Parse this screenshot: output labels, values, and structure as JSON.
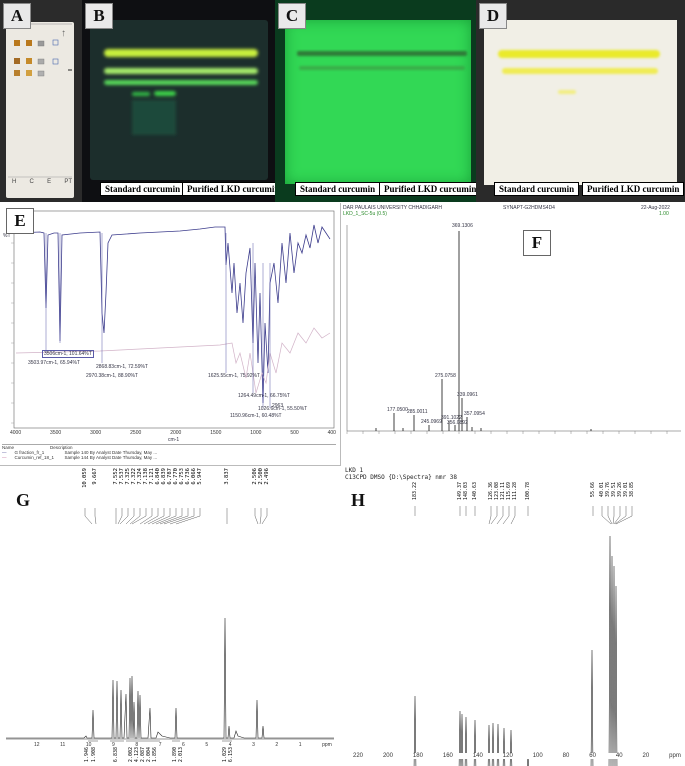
{
  "panels": {
    "a": {
      "letter": "A",
      "lane_labels": [
        "H",
        "C",
        "E",
        "PT"
      ]
    },
    "b": {
      "letter": "B",
      "label_std": "Standard curcumin",
      "label_lkd": "Purified LKD curcumin"
    },
    "c": {
      "letter": "C",
      "label_std": "Standard curcumin",
      "label_lkd": "Purified LKD curcumin"
    },
    "d": {
      "letter": "D",
      "label_std": "Standard curcumin",
      "label_lkd": "Purified LKD curcumin"
    },
    "e": {
      "letter": "E",
      "xlabel": "cm-1",
      "ylabel": "%T",
      "legend_header_name": "Name",
      "legend_header_desc": "Description",
      "x_ticks": [
        "4000",
        "3500",
        "3000",
        "2500",
        "2000",
        "1500",
        "1000",
        "500",
        "400"
      ],
      "legend": [
        {
          "name": "G fraction_fr_1",
          "desc": "Sample 140 By Analyst Date Thursday, May ..."
        },
        {
          "name": "Curcumin_ref_18_1",
          "desc": "Sample 144 By Analyst Date Thursday, May ..."
        }
      ],
      "annotations": [
        "3506cm-1, 101.64%T",
        "3503.97cm-1, 65.94%T",
        "2868.83cm-1, 72.59%T",
        "2970.38cm-1, 88.90%T",
        "1625.55cm-1, 75.92%T",
        "1264.49cm-1, 66.75%T",
        "1150.96cm-1, 60.48%T",
        "1026.6cm-1, 55.50%T",
        "2963"
      ]
    },
    "f": {
      "letter": "F",
      "header_left": "DAR PAULAIS UNIVERSITY CHHADIGARH",
      "header_mid": "SYNAPT-G2HDMS4D4",
      "header_right": "22-Aug-2022",
      "header_sub1": "LKD_1_SC-5u (0.5)",
      "header_sub2": "1.00",
      "peak_labels": [
        "369.1306",
        "177.0500",
        "285.0011",
        "245.0969",
        "275.0758",
        "339.0961",
        "357.0954",
        "391.1022",
        "356.0892"
      ]
    },
    "g": {
      "letter": "G",
      "xlabel": "ppm",
      "peaks": [
        "10.059",
        "9.667",
        "7.552",
        "7.537",
        "7.325",
        "7.322",
        "7.324",
        "7.138",
        "7.121",
        "6.840",
        "6.839",
        "6.787",
        "6.770",
        "6.753",
        "6.736",
        "6.066",
        "5.947",
        "3.837",
        "2.506",
        "2.500",
        "2.496"
      ],
      "x_ticks": [
        "12",
        "11",
        "10",
        "9",
        "8",
        "7",
        "6",
        "5",
        "4",
        "3",
        "2",
        "1",
        "ppm"
      ],
      "integrals": [
        "1.946",
        "1.908",
        "6.838",
        "2.002",
        "4.123",
        "2.087",
        "2.004",
        "1.856",
        "1.890",
        "2.013",
        "1.029",
        "6.153"
      ]
    },
    "h": {
      "letter": "H",
      "title1": "LKD 1",
      "title2": "C13CPD DMSO {D:\\Spectra} nmr 38",
      "xlabel": "ppm",
      "peaks": [
        "183.22",
        "149.37",
        "148.03",
        "140.63",
        "126.36",
        "123.08",
        "121.11",
        "115.69",
        "111.28",
        "100.78",
        "55.66",
        "40.01",
        "39.76",
        "39.51",
        "39.26",
        "39.01",
        "38.85"
      ],
      "x_ticks": [
        "220",
        "200",
        "180",
        "160",
        "140",
        "120",
        "100",
        "80",
        "60",
        "40",
        "20",
        "ppm"
      ]
    }
  }
}
